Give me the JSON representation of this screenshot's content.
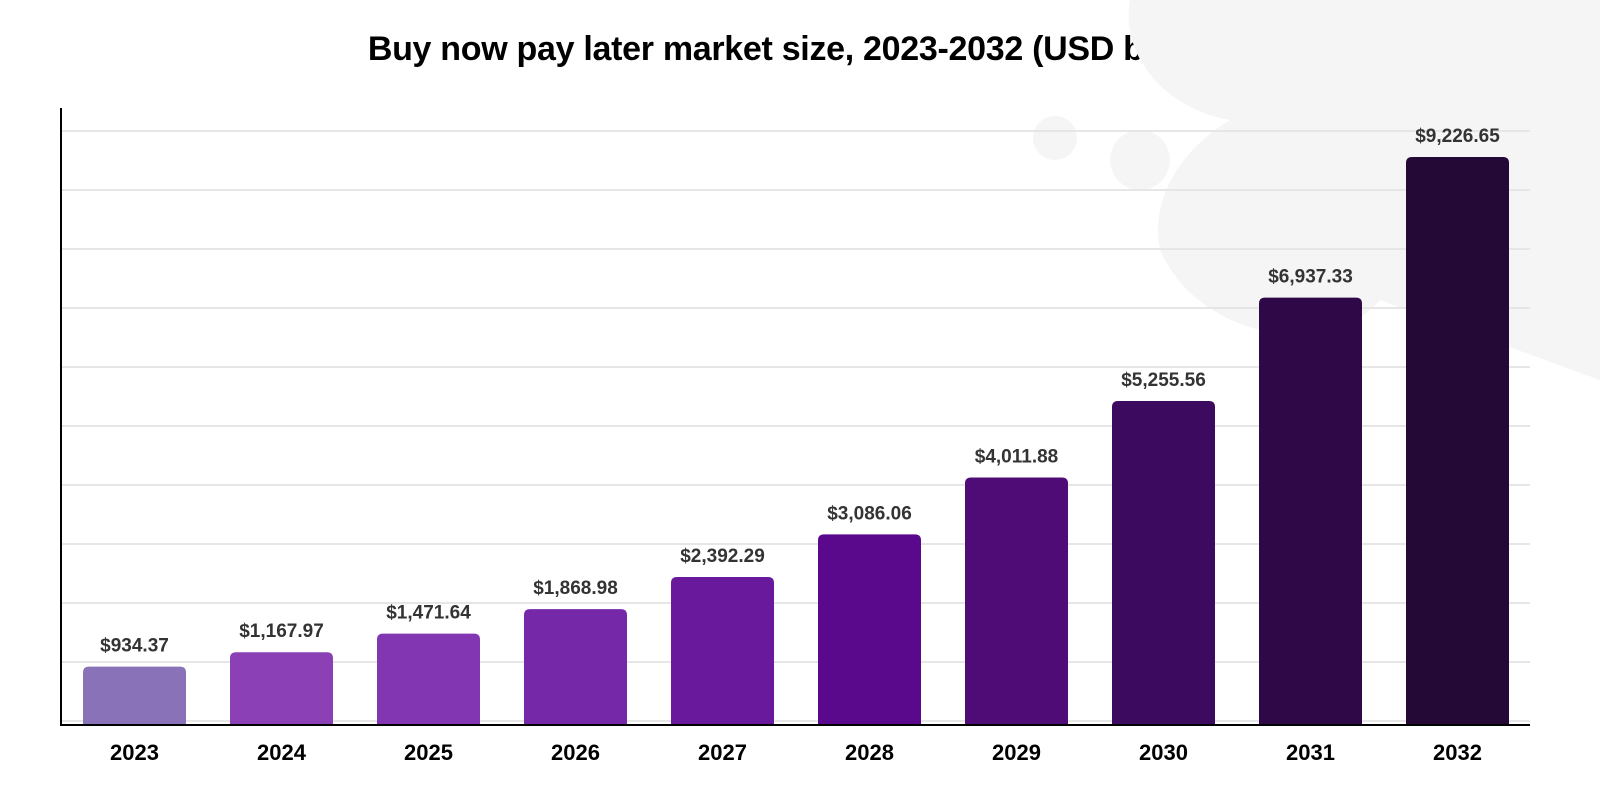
{
  "chart_data": {
    "type": "bar",
    "title": "Buy now pay later market size, 2023-2032 (USD billion)",
    "xlabel": "",
    "ylabel": "",
    "categories": [
      "2023",
      "2024",
      "2025",
      "2026",
      "2027",
      "2028",
      "2029",
      "2030",
      "2031",
      "2032"
    ],
    "values": [
      934.37,
      1167.97,
      1471.64,
      1868.98,
      2392.29,
      3086.06,
      4011.88,
      5255.56,
      6937.33,
      9226.65
    ],
    "data_labels": [
      "$934.37",
      "$1,167.97",
      "$1,471.64",
      "$1,868.98",
      "$2,392.29",
      "$3,086.06",
      "$4,011.88",
      "$5,255.56",
      "$6,937.33",
      "$9,226.65"
    ],
    "colors": [
      "#8a72b8",
      "#8b40b6",
      "#8236b2",
      "#7529a9",
      "#68199c",
      "#5a098c",
      "#4f0c76",
      "#3c0a5e",
      "#2f0847",
      "#240836"
    ],
    "ylim": [
      0,
      10000
    ],
    "grid": true,
    "y_tick_labels_shown": false,
    "legend": "none"
  }
}
